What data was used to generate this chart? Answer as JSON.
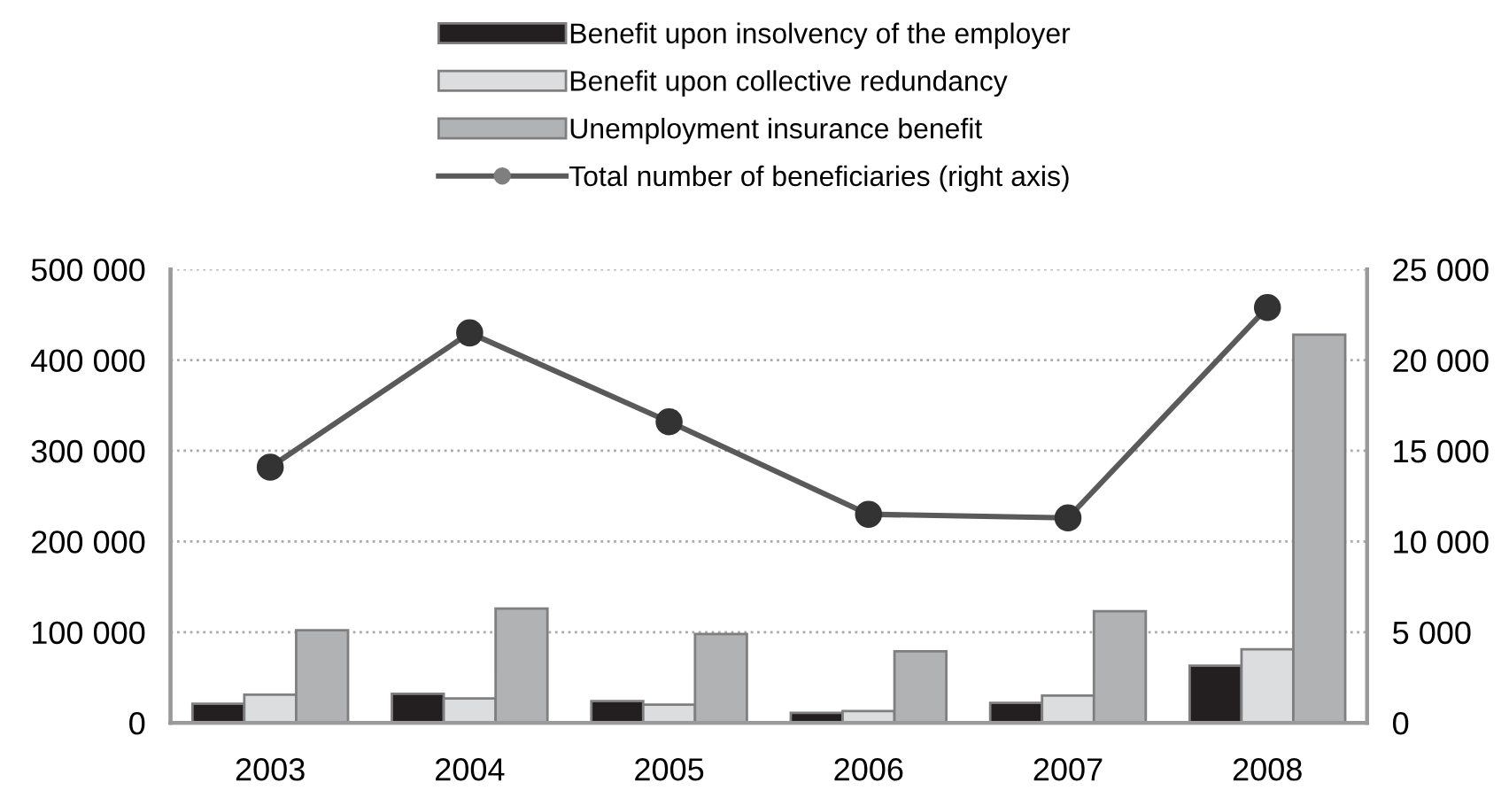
{
  "chart_data": {
    "type": "bar",
    "categories": [
      "2003",
      "2004",
      "2005",
      "2006",
      "2007",
      "2008"
    ],
    "series": [
      {
        "name": "Benefit upon insolvency of the employer",
        "color": "#231f20",
        "values": [
          21000,
          32000,
          24000,
          11000,
          22000,
          63000
        ]
      },
      {
        "name": "Benefit upon collective redundancy",
        "color": "#dcdddf",
        "values": [
          31000,
          27000,
          20000,
          13000,
          30000,
          81000
        ]
      },
      {
        "name": "Unemployment insurance benefit",
        "color": "#b1b2b4",
        "values": [
          102000,
          126000,
          98000,
          79000,
          123000,
          428000
        ]
      },
      {
        "name": "Total number of beneficiaries (right axis)",
        "type": "line",
        "axis": "y2",
        "color": "#5a5a5a",
        "marker": "circle",
        "values": [
          14100,
          21500,
          16600,
          11500,
          11300,
          22900
        ]
      }
    ],
    "ylim": [
      0,
      500000
    ],
    "yticks": [
      {
        "value": 0,
        "label": "0"
      },
      {
        "value": 100000,
        "label": "100 000"
      },
      {
        "value": 200000,
        "label": "200 000"
      },
      {
        "value": 300000,
        "label": "300 000"
      },
      {
        "value": 400000,
        "label": "400 000"
      },
      {
        "value": 500000,
        "label": "500 000"
      }
    ],
    "y2lim": [
      0,
      25000
    ],
    "y2ticks": [
      {
        "value": 0,
        "label": "0"
      },
      {
        "value": 5000,
        "label": "5 000"
      },
      {
        "value": 10000,
        "label": "10 000"
      },
      {
        "value": 15000,
        "label": "15 000"
      },
      {
        "value": 20000,
        "label": "20 000"
      },
      {
        "value": 25000,
        "label": "25 000"
      }
    ],
    "grid": "y",
    "legend": "top"
  }
}
